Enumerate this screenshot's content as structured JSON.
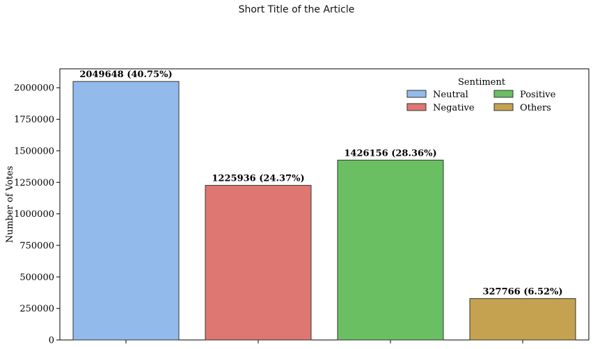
{
  "page_title": "Short Title of the Article",
  "chart_data": {
    "type": "bar",
    "categories": [
      "Neutral",
      "Negative",
      "Positive",
      "Others"
    ],
    "values": [
      2049648,
      1225936,
      1426156,
      327766
    ],
    "data_labels": [
      "2049648 (40.75%)",
      "1225936 (24.37%)",
      "1426156 (28.36%)",
      "327766 (6.52%)"
    ],
    "colors": [
      "#92bbec",
      "#de7772",
      "#6abf62",
      "#c5a24f"
    ],
    "ylabel": "Number of Votes",
    "xlabel": "",
    "ylim": [
      0,
      2150000
    ],
    "yticks": [
      0,
      250000,
      500000,
      750000,
      1000000,
      1250000,
      1500000,
      1750000,
      2000000
    ],
    "legend": {
      "title": "Sentiment",
      "position": "top-right",
      "entries": [
        "Neutral",
        "Positive",
        "Negative",
        "Others"
      ]
    },
    "grid": false
  }
}
